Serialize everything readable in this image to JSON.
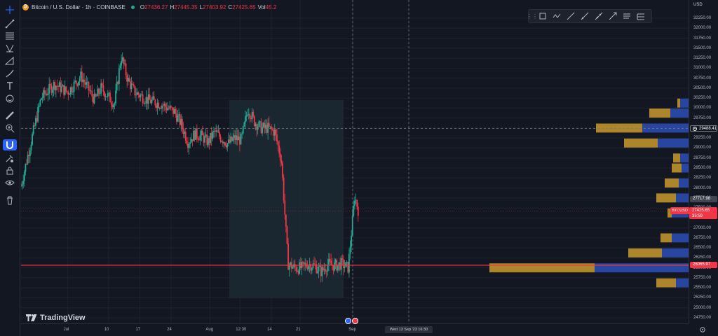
{
  "header": {
    "title": "Bitcoin / U.S. Dollar · 1h · COINBASE",
    "coin_logo_text": "₿",
    "ohlc": [
      {
        "label": "O",
        "value": "27436.27"
      },
      {
        "label": "H",
        "value": "27445.35"
      },
      {
        "label": "L",
        "value": "27403.92"
      },
      {
        "label": "C",
        "value": "27425.65"
      },
      {
        "label": "Vol",
        "value": "45.2"
      }
    ]
  },
  "colors": {
    "background": "#131722",
    "up": "#22ab94",
    "down": "#f23645",
    "accent": "#2962ff",
    "vp_up": "#c99a2e",
    "vp_down": "#2d4fb5"
  },
  "price_axis": {
    "currency": "USD",
    "ticks": [
      "32250.00",
      "32000.00",
      "31750.00",
      "31500.00",
      "31250.00",
      "31000.00",
      "30750.00",
      "30500.00",
      "30250.00",
      "30000.00",
      "29750.00",
      "29500.00",
      "29250.00",
      "29000.00",
      "28750.00",
      "28500.00",
      "28250.00",
      "28000.00",
      "27750.00",
      "27500.00",
      "27250.00",
      "27000.00",
      "26750.00",
      "26500.00",
      "26250.00",
      "26000.00",
      "25750.00",
      "25500.00",
      "25250.00",
      "25000.00",
      "24750.00"
    ],
    "crosshair_price": "29488.41",
    "hline_price": "27717.98",
    "red_hline_price": "26065.97",
    "last_price": "27425.65",
    "countdown": "35:59",
    "symbol": "BTCUSD"
  },
  "time_axis": {
    "ticks": [
      {
        "label": "Jul",
        "frac": 0.07
      },
      {
        "label": "10",
        "frac": 0.131
      },
      {
        "label": "17",
        "frac": 0.178
      },
      {
        "label": "24",
        "frac": 0.225
      },
      {
        "label": "Aug",
        "frac": 0.283
      },
      {
        "label": "12:30",
        "frac": 0.328
      },
      {
        "label": "14",
        "frac": 0.375
      },
      {
        "label": "21",
        "frac": 0.418
      },
      {
        "label": "Sep",
        "frac": 0.497
      }
    ],
    "cursor_label": "Wed 13 Sep '23   16:30"
  },
  "branding": {
    "logo_text": "TradingView"
  },
  "toolbar": {
    "left_tools": [
      "crosshair-icon",
      "trend-line-icon",
      "fib-icon",
      "pattern-icon",
      "prediction-icon",
      "brush-icon",
      "text-icon",
      "emoji-icon",
      "ruler-icon",
      "zoom-icon",
      "magnet-icon",
      "lock-drawings-icon",
      "lock-icon",
      "eye-icon",
      "trash-icon"
    ],
    "drawing_tools": [
      "drag-handle",
      "rectangle-icon",
      "path-icon",
      "trend-line-icon",
      "ray-icon",
      "extended-line-icon",
      "arrow-icon",
      "parallel-channel-icon",
      "regression-icon"
    ]
  },
  "chart_data": {
    "type": "candlestick",
    "symbol": "BTCUSD",
    "timeframe": "1h",
    "exchange": "COINBASE",
    "y_range": [
      24750,
      32250
    ],
    "levels": {
      "crosshair": 29488.41,
      "horizontal_line": 27717.98,
      "red_horizontal_line": 26065.97,
      "last_close": 27425.65
    },
    "price_path": [
      [
        0.0,
        28050
      ],
      [
        0.01,
        28800
      ],
      [
        0.03,
        30250
      ],
      [
        0.05,
        30600
      ],
      [
        0.07,
        30400
      ],
      [
        0.09,
        30800
      ],
      [
        0.11,
        30200
      ],
      [
        0.12,
        30500
      ],
      [
        0.14,
        30100
      ],
      [
        0.15,
        31300
      ],
      [
        0.16,
        30700
      ],
      [
        0.17,
        30400
      ],
      [
        0.19,
        30200
      ],
      [
        0.21,
        30100
      ],
      [
        0.23,
        29900
      ],
      [
        0.24,
        29600
      ],
      [
        0.25,
        29150
      ],
      [
        0.26,
        29350
      ],
      [
        0.27,
        29300
      ],
      [
        0.28,
        29150
      ],
      [
        0.29,
        29400
      ],
      [
        0.3,
        29250
      ],
      [
        0.31,
        29100
      ],
      [
        0.32,
        29250
      ],
      [
        0.33,
        29200
      ],
      [
        0.34,
        30000
      ],
      [
        0.35,
        29650
      ],
      [
        0.36,
        29500
      ],
      [
        0.37,
        29500
      ],
      [
        0.38,
        29400
      ],
      [
        0.39,
        28700
      ],
      [
        0.4,
        26100
      ],
      [
        0.41,
        26000
      ],
      [
        0.42,
        26000
      ],
      [
        0.43,
        26100
      ],
      [
        0.44,
        26050
      ],
      [
        0.45,
        25900
      ],
      [
        0.46,
        26100
      ],
      [
        0.47,
        26050
      ],
      [
        0.48,
        26100
      ],
      [
        0.49,
        26000
      ],
      [
        0.5,
        27800
      ],
      [
        0.505,
        27450
      ]
    ],
    "volume_profile": [
      {
        "price": 30125,
        "up_width": 4,
        "down_width": 12
      },
      {
        "price": 29875,
        "up_width": 30,
        "down_width": 26
      },
      {
        "price": 29500,
        "up_width": 66,
        "down_width": 66
      },
      {
        "price": 29125,
        "up_width": 48,
        "down_width": 44
      },
      {
        "price": 28750,
        "up_width": 10,
        "down_width": 12
      },
      {
        "price": 28500,
        "up_width": 14,
        "down_width": 10
      },
      {
        "price": 28125,
        "up_width": 20,
        "down_width": 14
      },
      {
        "price": 27750,
        "up_width": 28,
        "down_width": 18
      },
      {
        "price": 27375,
        "up_width": 6,
        "down_width": 24
      },
      {
        "price": 26750,
        "up_width": 16,
        "down_width": 24
      },
      {
        "price": 26375,
        "up_width": 48,
        "down_width": 38
      },
      {
        "price": 26000,
        "up_width": 150,
        "down_width": 134
      },
      {
        "price": 25625,
        "up_width": 28,
        "down_width": 18
      }
    ]
  }
}
